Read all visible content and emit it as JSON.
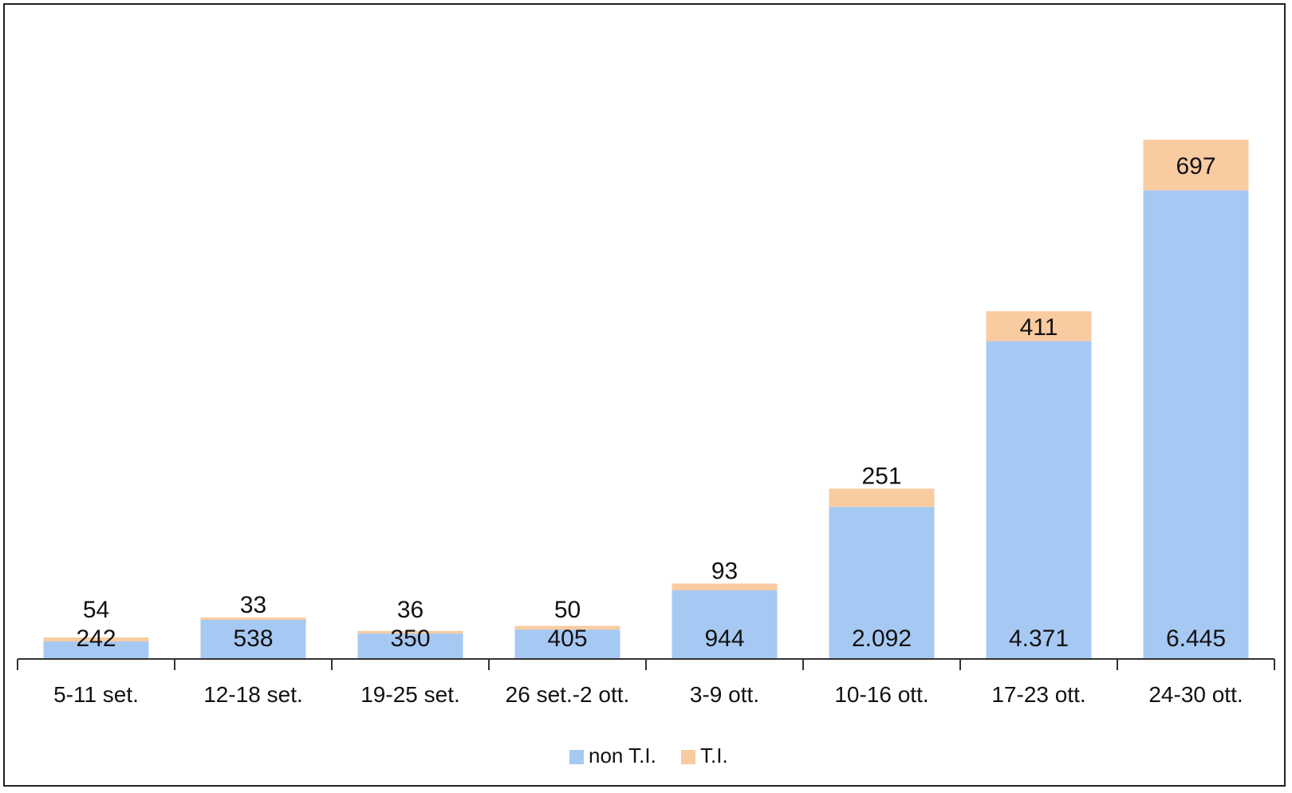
{
  "chart_data": {
    "type": "bar",
    "stacked": true,
    "title": "",
    "xlabel": "",
    "ylabel": "",
    "categories": [
      "5-11 set.",
      "12-18 set.",
      "19-25 set.",
      "26 set.-2 ott.",
      "3-9 ott.",
      "10-16 ott.",
      "17-23 ott.",
      "24-30 ott."
    ],
    "series": [
      {
        "name": "non T.I.",
        "color": "#a6c9f3",
        "values": [
          242,
          538,
          350,
          405,
          944,
          2092,
          4371,
          6445
        ],
        "labels": [
          "242",
          "538",
          "350",
          "405",
          "944",
          "2.092",
          "4.371",
          "6.445"
        ]
      },
      {
        "name": "T.I.",
        "color": "#f9cba0",
        "values": [
          54,
          33,
          36,
          50,
          93,
          251,
          411,
          697
        ],
        "labels": [
          "54",
          "33",
          "36",
          "50",
          "93",
          "251",
          "411",
          "697"
        ]
      }
    ],
    "ylim": [
      0,
      7900
    ],
    "grid": false,
    "legend": "bottom-center"
  }
}
